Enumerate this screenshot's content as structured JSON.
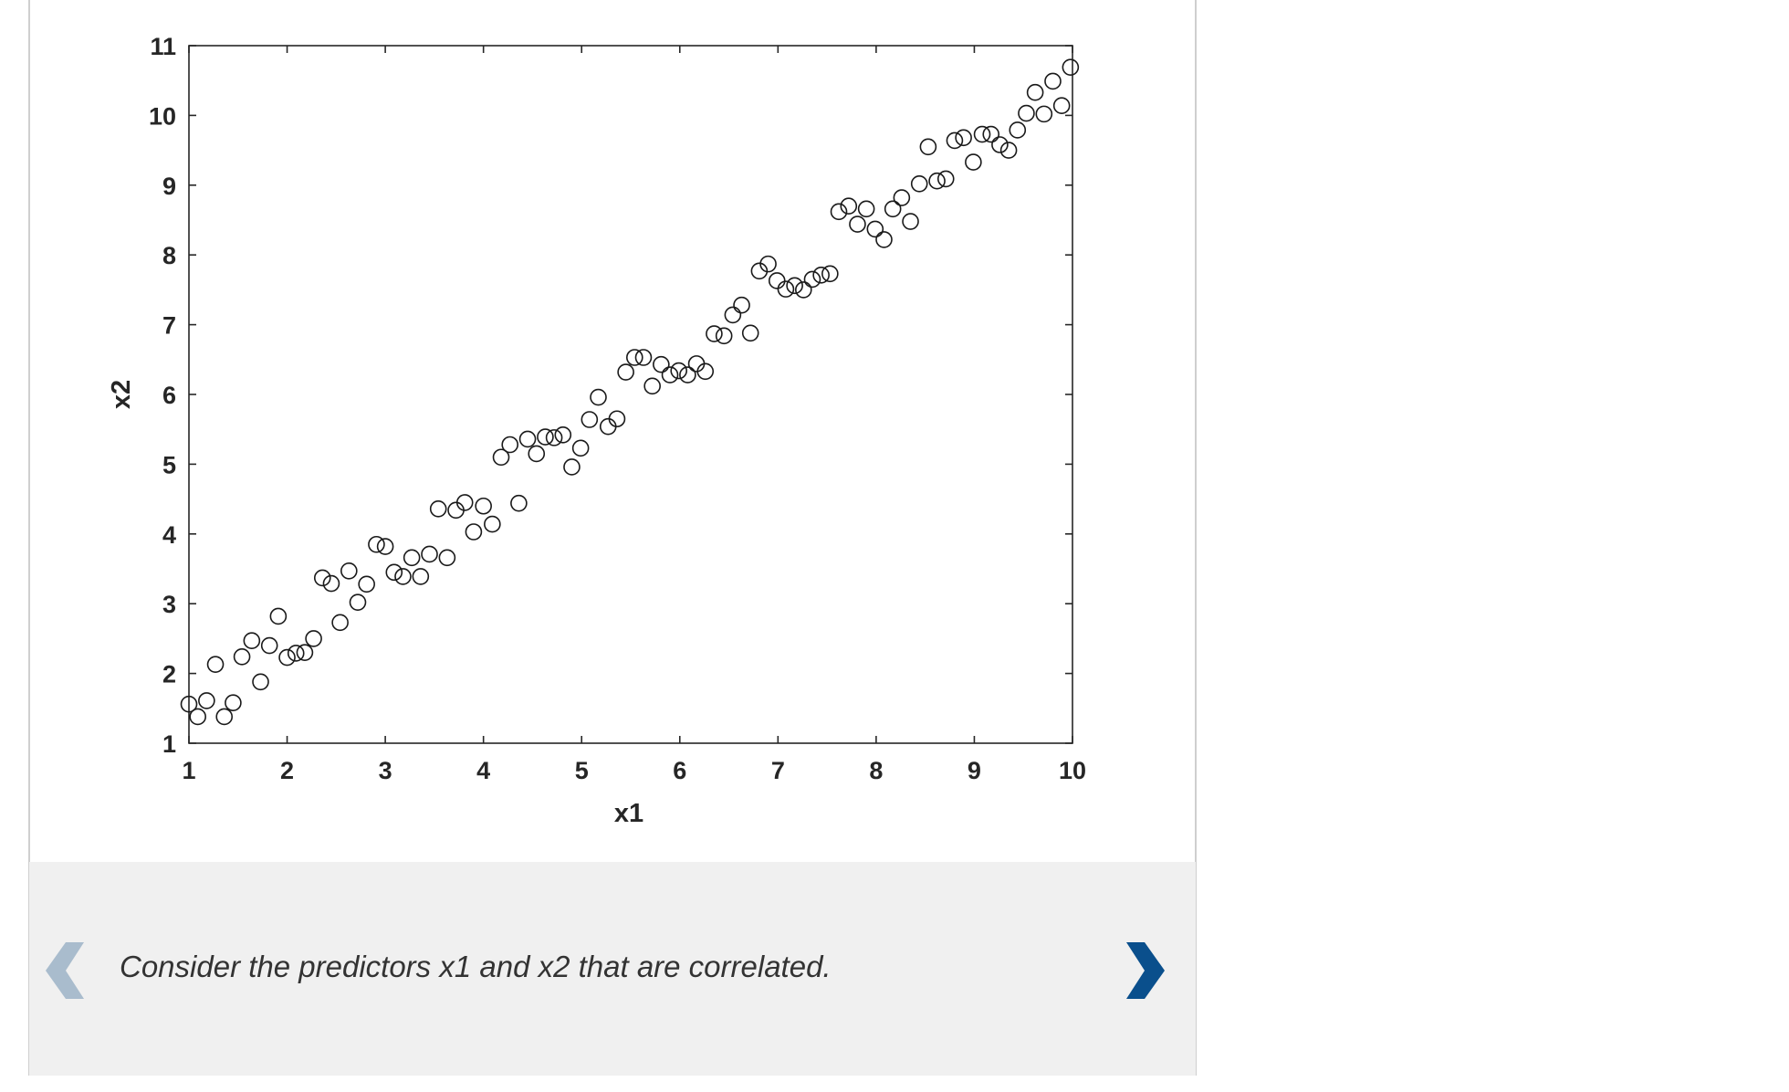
{
  "caption": {
    "text": "Consider the predictors x1 and x2 that are correlated."
  },
  "navigation": {
    "prev_icon": "chevron-left-icon",
    "next_icon": "chevron-right-icon",
    "prev_color": "#a9bccd",
    "next_color": "#0a4f8c"
  },
  "chart_data": {
    "type": "scatter",
    "title": "",
    "xlabel": "x1",
    "ylabel": "x2",
    "xlim": [
      1,
      10
    ],
    "ylim": [
      1,
      11
    ],
    "xticks": [
      "1",
      "2",
      "3",
      "4",
      "5",
      "6",
      "7",
      "8",
      "9",
      "10"
    ],
    "yticks": [
      "1",
      "2",
      "3",
      "4",
      "5",
      "6",
      "7",
      "8",
      "9",
      "10",
      "11"
    ],
    "grid": false,
    "marker": "open-circle",
    "points": [
      [
        1.0,
        1.56
      ],
      [
        1.09,
        1.38
      ],
      [
        1.18,
        1.61
      ],
      [
        1.27,
        2.13
      ],
      [
        1.36,
        1.38
      ],
      [
        1.45,
        1.58
      ],
      [
        1.54,
        2.24
      ],
      [
        1.64,
        2.47
      ],
      [
        1.73,
        1.88
      ],
      [
        1.82,
        2.4
      ],
      [
        1.91,
        2.82
      ],
      [
        2.0,
        2.23
      ],
      [
        2.09,
        2.29
      ],
      [
        2.18,
        2.3
      ],
      [
        2.27,
        2.5
      ],
      [
        2.36,
        3.37
      ],
      [
        2.45,
        3.29
      ],
      [
        2.54,
        2.73
      ],
      [
        2.63,
        3.47
      ],
      [
        2.72,
        3.02
      ],
      [
        2.81,
        3.28
      ],
      [
        2.91,
        3.85
      ],
      [
        3.0,
        3.82
      ],
      [
        3.09,
        3.45
      ],
      [
        3.18,
        3.39
      ],
      [
        3.27,
        3.66
      ],
      [
        3.36,
        3.39
      ],
      [
        3.45,
        3.71
      ],
      [
        3.54,
        4.36
      ],
      [
        3.63,
        3.66
      ],
      [
        3.72,
        4.34
      ],
      [
        3.81,
        4.45
      ],
      [
        3.9,
        4.03
      ],
      [
        4.0,
        4.4
      ],
      [
        4.09,
        4.14
      ],
      [
        4.18,
        5.1
      ],
      [
        4.27,
        5.28
      ],
      [
        4.36,
        4.44
      ],
      [
        4.45,
        5.36
      ],
      [
        4.54,
        5.15
      ],
      [
        4.63,
        5.39
      ],
      [
        4.72,
        5.38
      ],
      [
        4.81,
        5.42
      ],
      [
        4.9,
        4.96
      ],
      [
        4.99,
        5.23
      ],
      [
        5.08,
        5.64
      ],
      [
        5.17,
        5.96
      ],
      [
        5.27,
        5.54
      ],
      [
        5.36,
        5.65
      ],
      [
        5.45,
        6.32
      ],
      [
        5.54,
        6.53
      ],
      [
        5.63,
        6.53
      ],
      [
        5.72,
        6.12
      ],
      [
        5.81,
        6.43
      ],
      [
        5.9,
        6.28
      ],
      [
        5.99,
        6.34
      ],
      [
        6.08,
        6.28
      ],
      [
        6.17,
        6.44
      ],
      [
        6.26,
        6.33
      ],
      [
        6.35,
        6.87
      ],
      [
        6.45,
        6.84
      ],
      [
        6.54,
        7.14
      ],
      [
        6.63,
        7.28
      ],
      [
        6.72,
        6.88
      ],
      [
        6.81,
        7.77
      ],
      [
        6.9,
        7.87
      ],
      [
        6.99,
        7.63
      ],
      [
        7.08,
        7.51
      ],
      [
        7.17,
        7.56
      ],
      [
        7.26,
        7.5
      ],
      [
        7.35,
        7.65
      ],
      [
        7.44,
        7.71
      ],
      [
        7.53,
        7.73
      ],
      [
        7.62,
        8.62
      ],
      [
        7.72,
        8.7
      ],
      [
        7.81,
        8.44
      ],
      [
        7.9,
        8.66
      ],
      [
        7.99,
        8.37
      ],
      [
        8.08,
        8.22
      ],
      [
        8.17,
        8.66
      ],
      [
        8.26,
        8.82
      ],
      [
        8.35,
        8.48
      ],
      [
        8.44,
        9.02
      ],
      [
        8.53,
        9.55
      ],
      [
        8.62,
        9.06
      ],
      [
        8.71,
        9.09
      ],
      [
        8.8,
        9.64
      ],
      [
        8.89,
        9.68
      ],
      [
        8.99,
        9.33
      ],
      [
        9.08,
        9.73
      ],
      [
        9.17,
        9.73
      ],
      [
        9.26,
        9.58
      ],
      [
        9.35,
        9.5
      ],
      [
        9.44,
        9.79
      ],
      [
        9.53,
        10.03
      ],
      [
        9.62,
        10.33
      ],
      [
        9.71,
        10.02
      ],
      [
        9.8,
        10.49
      ],
      [
        9.89,
        10.14
      ],
      [
        9.98,
        10.69
      ]
    ]
  }
}
